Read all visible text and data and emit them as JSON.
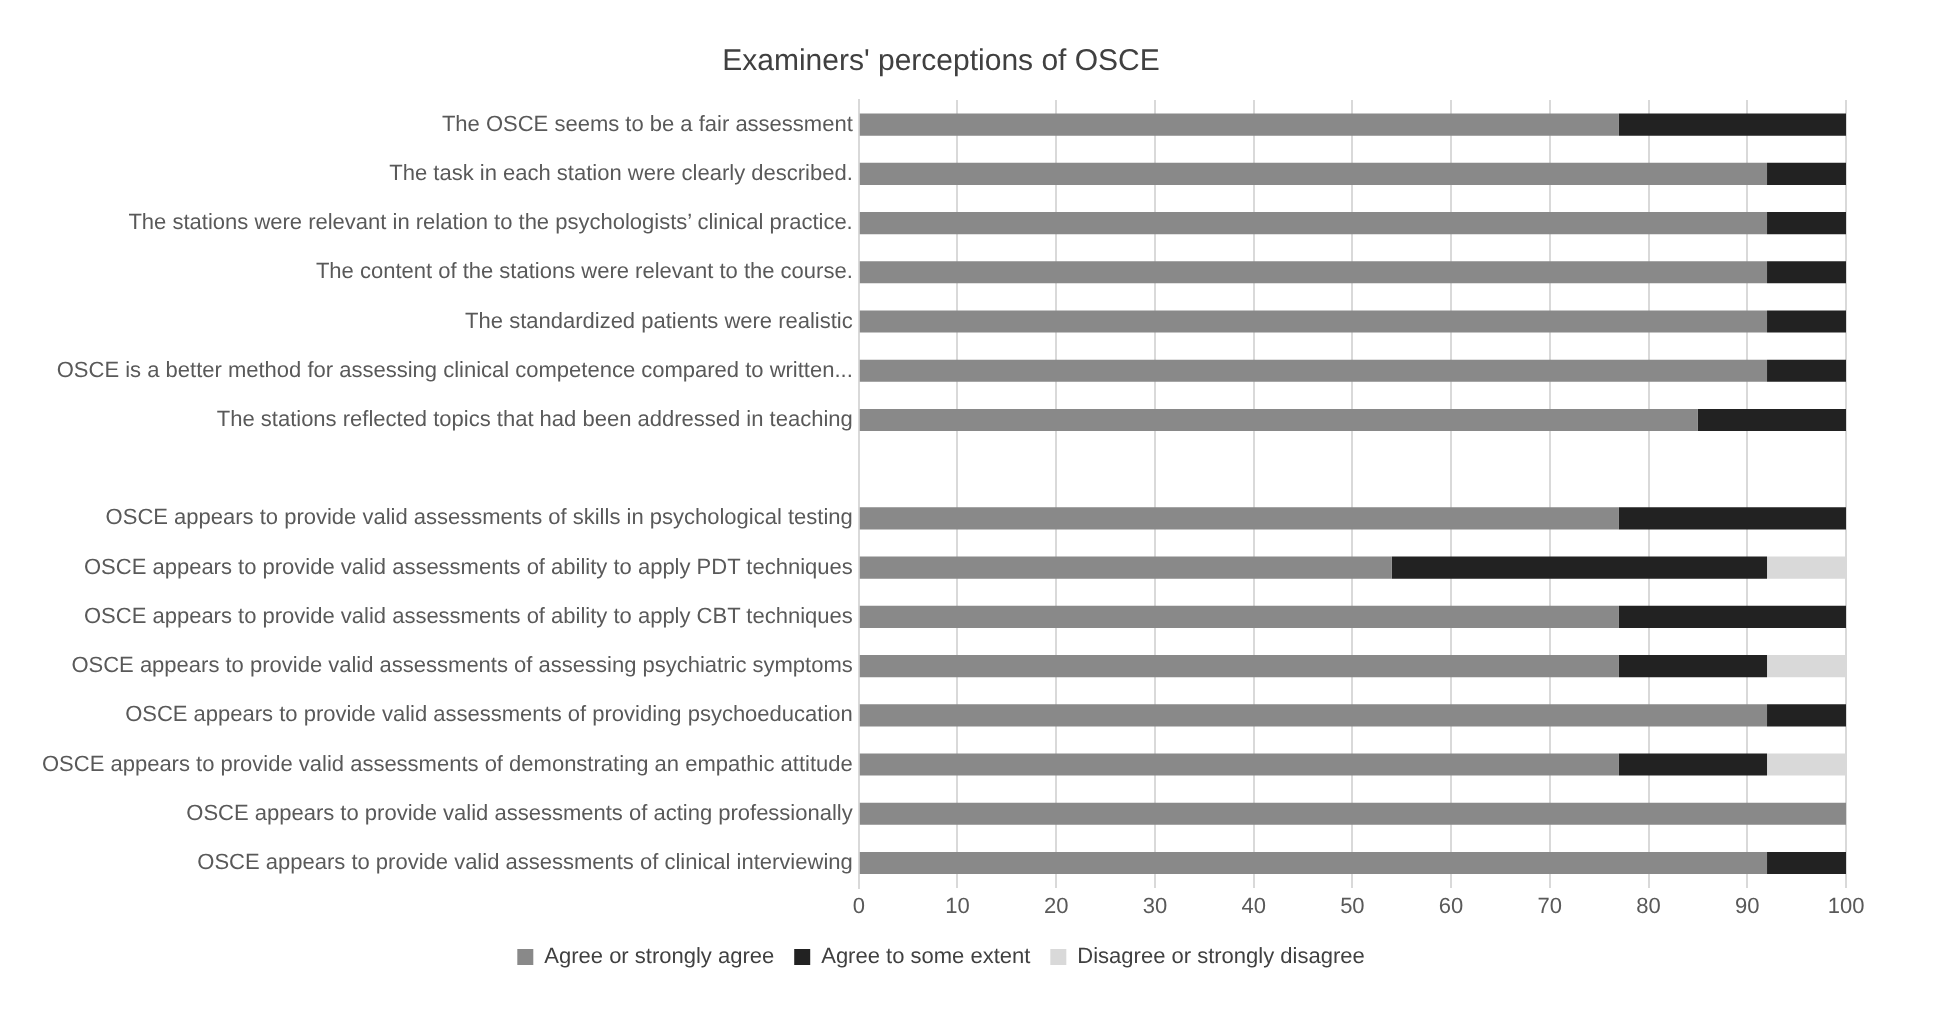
{
  "chart_data": {
    "type": "bar",
    "orientation": "horizontal",
    "stacked": true,
    "title": "Examiners' perceptions of OSCE",
    "categories": [
      "The OSCE seems to be a fair assessment",
      "The task in each station were clearly described.",
      "The stations were relevant in relation to the psychologists’ clinical practice.",
      "The content of the stations were relevant to the course.",
      "The standardized patients were realistic",
      "OSCE is a better method for assessing clinical competence compared to written...",
      "The stations reflected topics that had been addressed in teaching",
      null,
      "OSCE appears to provide valid assessments of skills in psychological testing",
      "OSCE appears to provide valid assessments of ability to apply PDT techniques",
      "OSCE appears to provide valid assessments of ability to apply CBT techniques",
      "OSCE appears to provide valid assessments of assessing psychiatric symptoms",
      "OSCE appears to provide valid assessments of providing psychoeducation",
      "OSCE appears to provide valid assessments of demonstrating an empathic attitude",
      "OSCE appears to provide valid assessments of acting professionally",
      "OSCE appears to provide valid assessments of clinical interviewing"
    ],
    "series": [
      {
        "name": "Agree or strongly agree",
        "color": "#898989",
        "values": [
          77,
          92,
          92,
          92,
          92,
          92,
          85,
          null,
          77,
          54,
          77,
          77,
          92,
          77,
          100,
          92
        ]
      },
      {
        "name": "Agree to some extent",
        "color": "#222222",
        "values": [
          23,
          8,
          8,
          8,
          8,
          8,
          15,
          null,
          23,
          38,
          23,
          15,
          8,
          15,
          0,
          8
        ]
      },
      {
        "name": "Disagree or strongly disagree",
        "color": "#d9d9d9",
        "values": [
          0,
          0,
          0,
          0,
          0,
          0,
          0,
          null,
          0,
          8,
          0,
          8,
          0,
          8,
          0,
          0
        ]
      }
    ],
    "xlim": [
      0,
      100
    ],
    "xticks": [
      0,
      10,
      20,
      30,
      40,
      50,
      60,
      70,
      80,
      90,
      100
    ],
    "grid": "x",
    "legend": "bottom"
  }
}
